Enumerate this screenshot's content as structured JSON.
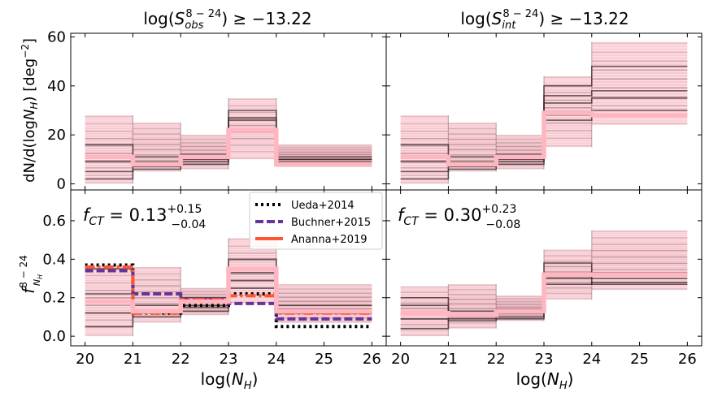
{
  "chart_data": [
    {
      "type": "step",
      "panel": "top-left",
      "title": "log(S_obs^{8-24}) ≥ −13.22",
      "ylabel": "dN/d(logN_H) [deg^-2]",
      "xlabel": "",
      "xlim": [
        19.7,
        26.3
      ],
      "ylim": [
        -2.5,
        61.5
      ],
      "xticks": [
        20,
        21,
        22,
        23,
        24,
        25,
        26
      ],
      "yticks": [
        0,
        20,
        40,
        60
      ],
      "bins": [
        [
          20,
          21
        ],
        [
          21,
          22
        ],
        [
          22,
          23
        ],
        [
          23,
          24
        ],
        [
          24,
          26
        ]
      ],
      "median": [
        11,
        8,
        11,
        22,
        8
      ],
      "band_low": [
        0,
        5,
        6,
        10,
        7
      ],
      "band_high": [
        28,
        25,
        20,
        35,
        16
      ],
      "dark_lines": [
        [
          2,
          7,
          8,
          26,
          10
        ],
        [
          9,
          9,
          12,
          30,
          11
        ],
        [
          16,
          11,
          10,
          22,
          9
        ],
        [
          5,
          6,
          9,
          27,
          10
        ]
      ]
    },
    {
      "type": "step",
      "panel": "top-right",
      "title": "log(S_int^{8-24}) ≥ −13.22",
      "xlim": [
        19.7,
        26.3
      ],
      "ylim": [
        -2.5,
        61.5
      ],
      "xticks": [
        20,
        21,
        22,
        23,
        24,
        25,
        26
      ],
      "yticks": [
        0,
        20,
        40,
        60
      ],
      "bins": [
        [
          20,
          21
        ],
        [
          21,
          22
        ],
        [
          22,
          23
        ],
        [
          23,
          24
        ],
        [
          24,
          26
        ]
      ],
      "median": [
        11,
        8,
        11,
        29,
        28
      ],
      "band_low": [
        0,
        5,
        6,
        15,
        24
      ],
      "band_high": [
        28,
        25,
        20,
        44,
        58
      ],
      "dark_lines": [
        [
          2,
          7,
          8,
          36,
          38
        ],
        [
          9,
          9,
          12,
          33,
          35
        ],
        [
          16,
          11,
          10,
          40,
          48
        ],
        [
          5,
          6,
          9,
          26,
          30
        ]
      ]
    },
    {
      "type": "step",
      "panel": "bottom-left",
      "annotation": "f_CT = 0.13 (+0.15, −0.04)",
      "ylabel": "f_{N_H}^{8-24}",
      "xlabel": "log(N_H)",
      "xlim": [
        19.7,
        26.3
      ],
      "ylim": [
        -0.05,
        0.76
      ],
      "xticks": [
        20,
        21,
        22,
        23,
        24,
        25,
        26
      ],
      "yticks": [
        0.0,
        0.2,
        0.4,
        0.6
      ],
      "bins": [
        [
          20,
          21
        ],
        [
          21,
          22
        ],
        [
          22,
          23
        ],
        [
          23,
          24
        ],
        [
          24,
          26
        ]
      ],
      "median": [
        0.18,
        0.13,
        0.18,
        0.35,
        0.13
      ],
      "band_low": [
        0.0,
        0.07,
        0.11,
        0.17,
        0.07
      ],
      "band_high": [
        0.36,
        0.36,
        0.25,
        0.51,
        0.27
      ],
      "dark_lines": [
        [
          0.05,
          0.13,
          0.15,
          0.33,
          0.14
        ],
        [
          0.22,
          0.1,
          0.2,
          0.29,
          0.13
        ],
        [
          0.35,
          0.16,
          0.16,
          0.4,
          0.16
        ],
        [
          0.12,
          0.12,
          0.13,
          0.25,
          0.12
        ]
      ],
      "models": [
        {
          "name": "Ueda+2014",
          "style": "dotted",
          "color": "#000000",
          "values": [
            0.37,
            0.12,
            0.16,
            0.22,
            0.05
          ]
        },
        {
          "name": "Buchner+2015",
          "style": "dashed",
          "color": "#663399",
          "values": [
            0.34,
            0.22,
            0.19,
            0.17,
            0.09
          ]
        },
        {
          "name": "Ananna+2019",
          "style": "dashdot",
          "color": "#ff5533",
          "values": [
            0.36,
            0.12,
            0.19,
            0.21,
            0.12
          ]
        }
      ],
      "legend_position": "top-right"
    },
    {
      "type": "step",
      "panel": "bottom-right",
      "annotation": "f_CT = 0.30 (+0.23, −0.08)",
      "xlabel": "log(N_H)",
      "xlim": [
        19.7,
        26.3
      ],
      "ylim": [
        -0.05,
        0.76
      ],
      "xticks": [
        20,
        21,
        22,
        23,
        24,
        25,
        26
      ],
      "yticks": [
        0.0,
        0.2,
        0.4,
        0.6
      ],
      "bins": [
        [
          20,
          21
        ],
        [
          21,
          22
        ],
        [
          22,
          23
        ],
        [
          23,
          24
        ],
        [
          24,
          26
        ]
      ],
      "median": [
        0.12,
        0.11,
        0.13,
        0.32,
        0.32
      ],
      "band_low": [
        0.0,
        0.04,
        0.08,
        0.19,
        0.24
      ],
      "band_high": [
        0.26,
        0.27,
        0.21,
        0.45,
        0.55
      ],
      "dark_lines": [
        [
          0.04,
          0.09,
          0.09,
          0.32,
          0.3
        ],
        [
          0.16,
          0.1,
          0.12,
          0.27,
          0.28
        ],
        [
          0.09,
          0.08,
          0.1,
          0.38,
          0.33
        ],
        [
          0.2,
          0.13,
          0.14,
          0.3,
          0.27
        ]
      ]
    }
  ],
  "labels": {
    "tl_title_main": "log(",
    "tl_title_s": "S",
    "tl_title_sub": "obs",
    "tl_title_sup": "8 − 24",
    "tl_title_end": ") ≥ −13.22",
    "tr_title_main": "log(",
    "tr_title_s": "S",
    "tr_title_sub": "int",
    "tr_title_sup": "8 − 24",
    "tr_title_end": ") ≥ −13.22",
    "ylabel_top_pre": "dN/d(log",
    "ylabel_top_n": "N",
    "ylabel_top_h": "H",
    "ylabel_top_mid": ") [deg",
    "ylabel_top_exp": "−2",
    "ylabel_top_end": "]",
    "ylabel_bottom_f": "f",
    "ylabel_bottom_sup": "8 − 24",
    "ylabel_bottom_n": "N",
    "ylabel_bottom_h": "H",
    "xlabel_pre": "log(",
    "xlabel_n": "N",
    "xlabel_h": "H",
    "xlabel_end": ")",
    "fct_left_f": "f",
    "fct_left_sub": "CT",
    "fct_left_val": " = 0.13",
    "fct_left_up": "+0.15",
    "fct_left_down": "−0.04",
    "fct_right_f": "f",
    "fct_right_sub": "CT",
    "fct_right_val": " = 0.30",
    "fct_right_up": "+0.23",
    "fct_right_down": "−0.08",
    "xtick_labels": [
      "20",
      "21",
      "22",
      "23",
      "24",
      "25",
      "26"
    ],
    "ytick_top_labels": [
      "0",
      "20",
      "40",
      "60"
    ],
    "ytick_bottom_labels": [
      "0.0",
      "0.2",
      "0.4",
      "0.6"
    ]
  },
  "colors": {
    "band": "#ffc0cb",
    "median": "#ffb6c1",
    "dark": "#3a2a2a"
  }
}
